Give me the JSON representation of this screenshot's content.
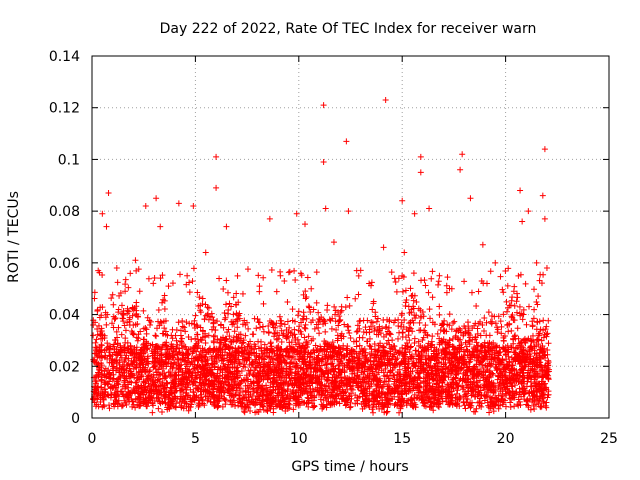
{
  "chart_data": {
    "type": "scatter",
    "title": "Day 222 of 2022, Rate Of TEC Index for receiver warn",
    "xlabel": "GPS time / hours",
    "ylabel": "ROTI / TECUs",
    "xlim": [
      0,
      25
    ],
    "ylim": [
      0,
      0.14
    ],
    "x_ticks": [
      "0",
      "5",
      "10",
      "15",
      "20",
      "25"
    ],
    "y_ticks": [
      "0",
      "0.02",
      "0.04",
      "0.06",
      "0.08",
      "0.1",
      "0.12",
      "0.14"
    ],
    "grid": true,
    "marker": "+",
    "color": "#ff0000",
    "series": [
      {
        "points": [
          [
            0.5,
            0.079
          ],
          [
            0.8,
            0.087
          ],
          [
            0.7,
            0.074
          ],
          [
            1.2,
            0.058
          ],
          [
            2.1,
            0.061
          ],
          [
            2.6,
            0.082
          ],
          [
            3.1,
            0.085
          ],
          [
            3.3,
            0.074
          ],
          [
            4.2,
            0.083
          ],
          [
            4.9,
            0.082
          ],
          [
            5.5,
            0.064
          ],
          [
            6.0,
            0.101
          ],
          [
            6.0,
            0.089
          ],
          [
            6.5,
            0.074
          ],
          [
            8.6,
            0.077
          ],
          [
            9.9,
            0.079
          ],
          [
            10.3,
            0.075
          ],
          [
            11.2,
            0.121
          ],
          [
            11.2,
            0.099
          ],
          [
            11.3,
            0.081
          ],
          [
            11.7,
            0.068
          ],
          [
            12.3,
            0.107
          ],
          [
            12.4,
            0.08
          ],
          [
            14.2,
            0.123
          ],
          [
            14.1,
            0.066
          ],
          [
            15.0,
            0.084
          ],
          [
            15.6,
            0.079
          ],
          [
            15.9,
            0.101
          ],
          [
            15.9,
            0.095
          ],
          [
            16.3,
            0.081
          ],
          [
            17.9,
            0.102
          ],
          [
            17.8,
            0.096
          ],
          [
            18.3,
            0.085
          ],
          [
            18.9,
            0.067
          ],
          [
            19.5,
            0.06
          ],
          [
            20.7,
            0.088
          ],
          [
            20.8,
            0.076
          ],
          [
            21.1,
            0.08
          ],
          [
            21.8,
            0.086
          ],
          [
            21.9,
            0.104
          ],
          [
            21.9,
            0.077
          ],
          [
            22.0,
            0.058
          ],
          [
            0.3,
            0.057
          ],
          [
            1.6,
            0.049
          ],
          [
            3.7,
            0.051
          ],
          [
            4.6,
            0.055
          ],
          [
            7.3,
            0.048
          ],
          [
            8.1,
            0.051
          ],
          [
            9.3,
            0.053
          ],
          [
            10.6,
            0.05
          ],
          [
            12.8,
            0.057
          ],
          [
            13.4,
            0.052
          ],
          [
            15.1,
            0.064
          ],
          [
            16.8,
            0.055
          ],
          [
            17.4,
            0.05
          ],
          [
            19.1,
            0.052
          ],
          [
            20.4,
            0.049
          ],
          [
            21.5,
            0.06
          ]
        ]
      }
    ]
  }
}
